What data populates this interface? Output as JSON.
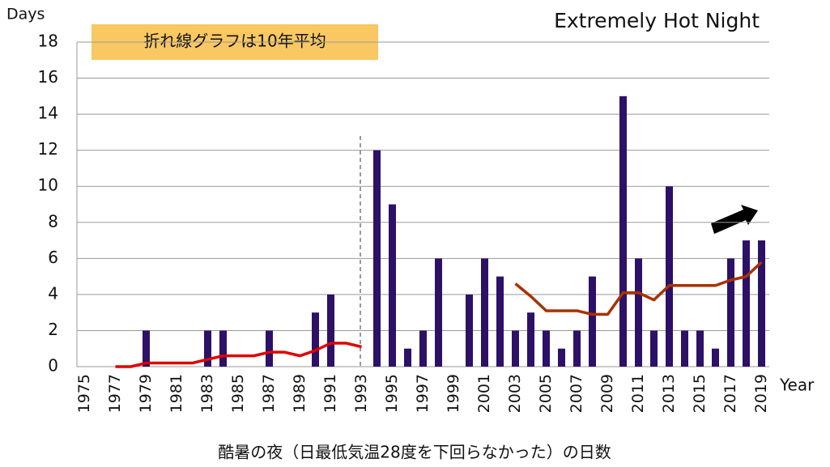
{
  "chart_data": {
    "type": "bar",
    "title": "Extremely Hot Night",
    "annotation": "折れ線グラフは10年平均",
    "caption": "酷暑の夜（日最低気温28度を下回らなかった）の日数",
    "y_label": "Days",
    "x_label": "Year",
    "categories": [
      "1975",
      null,
      "1977",
      null,
      "1979",
      null,
      "1981",
      null,
      "1983",
      null,
      "1985",
      null,
      "1987",
      null,
      "1989",
      null,
      "1991",
      null,
      "1993",
      null,
      "1995",
      null,
      "1997",
      null,
      "1999",
      null,
      "2001",
      null,
      "2003",
      null,
      "2005",
      null,
      "2007",
      null,
      "2009",
      null,
      "2011",
      null,
      "2013",
      null,
      "2015",
      null,
      "2017",
      null,
      "2019"
    ],
    "color": "#2c1167",
    "values": [
      0,
      0,
      0,
      0,
      2,
      0,
      0,
      0,
      2,
      2,
      0,
      0,
      2,
      0,
      0,
      3,
      4,
      0,
      0,
      12,
      9,
      1,
      2,
      6,
      0,
      4,
      6,
      5,
      2,
      3,
      2,
      1,
      2,
      5,
      0,
      15,
      6,
      2,
      10,
      2,
      2,
      1,
      6,
      7,
      7
    ],
    "lines": [
      {
        "color": "#e00000",
        "values": [
          null,
          null,
          0,
          0,
          0.2,
          0.2,
          0.2,
          0.2,
          0.4,
          0.6,
          0.6,
          0.6,
          0.8,
          0.8,
          0.6,
          0.9,
          1.3,
          1.3,
          1.1,
          null,
          null,
          null,
          null,
          null,
          null,
          null,
          null,
          null,
          null,
          null,
          null,
          null,
          null,
          null,
          null,
          null,
          null,
          null,
          null,
          null,
          null,
          null,
          null,
          null,
          null
        ]
      },
      {
        "color": "#a83200",
        "values": [
          null,
          null,
          null,
          null,
          null,
          null,
          null,
          null,
          null,
          null,
          null,
          null,
          null,
          null,
          null,
          null,
          null,
          null,
          null,
          null,
          null,
          null,
          null,
          null,
          null,
          null,
          null,
          null,
          4.6,
          3.9,
          3.1,
          3.1,
          3.1,
          2.9,
          2.9,
          4.1,
          4.1,
          3.7,
          4.5,
          4.5,
          4.5,
          4.5,
          4.8,
          5.0,
          5.8
        ]
      }
    ],
    "ylim": [
      0,
      18
    ],
    "yticks": [
      0,
      2,
      4,
      6,
      8,
      10,
      12,
      14,
      16,
      18
    ],
    "grid": true
  }
}
